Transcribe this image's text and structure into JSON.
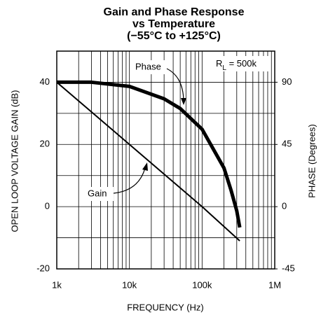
{
  "chart_data": {
    "type": "line",
    "title": [
      "Gain and Phase Response",
      "vs Temperature",
      "(−55°C to +125°C)"
    ],
    "x_label": "FREQUENCY (Hz)",
    "y_label": "OPEN LOOP VOLTAGE GAIN (dB)",
    "y2_label": "PHASE (Degrees)",
    "log_x": true,
    "grid": true,
    "xlim": [
      1000,
      1000000
    ],
    "xticks": [
      {
        "value": 1000,
        "label": "1k"
      },
      {
        "value": 10000,
        "label": "10k"
      },
      {
        "value": 100000,
        "label": "100k"
      },
      {
        "value": 1000000,
        "label": "1M"
      }
    ],
    "ylim": [
      -20,
      50
    ],
    "yticks": [
      -20,
      0,
      20,
      40
    ],
    "y_minor_ticks": [
      -10,
      10,
      30
    ],
    "y2lim": [
      -45,
      112.5
    ],
    "y2ticks": [
      -45,
      0,
      45,
      90
    ],
    "series": [
      {
        "name": "Gain",
        "color": "#000000",
        "x": [
          1000,
          100000,
          330000
        ],
        "values": [
          40,
          0,
          -11
        ]
      },
      {
        "name": "Phase",
        "color": "#000000",
        "axis": "y2",
        "x": [
          1000,
          3000,
          10000,
          30000,
          50000,
          100000,
          200000,
          250000,
          300000,
          330000
        ],
        "values": [
          90,
          90,
          87,
          78,
          71,
          56,
          28,
          12,
          -3,
          -15
        ]
      }
    ],
    "rl_label": {
      "main": "R",
      "sub": "L",
      "rest": " = 500k"
    }
  }
}
